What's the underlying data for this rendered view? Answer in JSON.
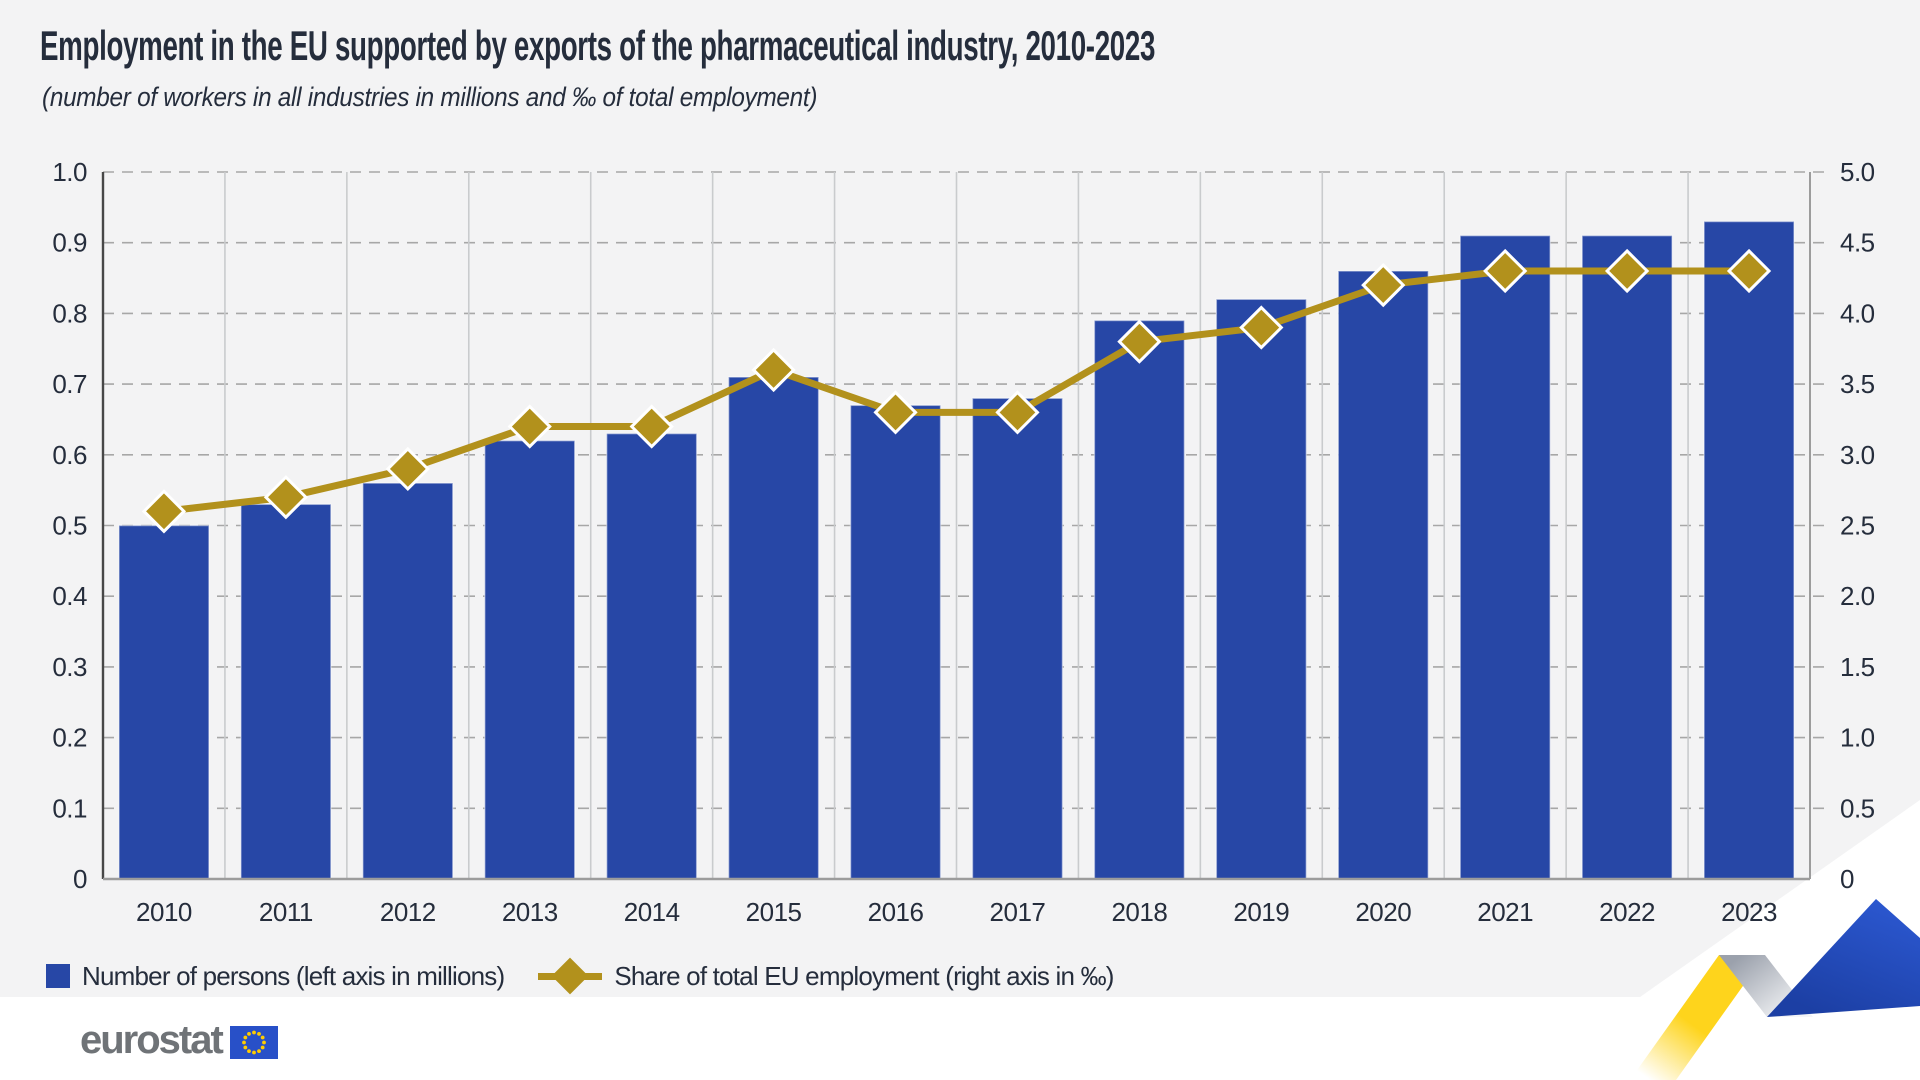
{
  "title": "Employment in the EU supported by exports of the pharmaceutical industry, 2010-2023",
  "subtitle": "(number of workers in all industries in millions and ‰ of total employment)",
  "legend": {
    "items": [
      {
        "marker": "blue-square",
        "label": "Number of persons (left axis in millions)"
      },
      {
        "marker": "gold-diamond-line",
        "label": "Share of total EU employment (right axis in ‰)"
      }
    ]
  },
  "footer": {
    "logo_text": "eurostat"
  },
  "colors": {
    "bar": "#2747A6",
    "line": "#B2911C",
    "panel_background": "#F3F3F4",
    "text": "#252D3C",
    "grid_dashed": "#A7A7A7",
    "grid_vertical": "#C9CBCD",
    "axis_left": "#474747",
    "axis_right_bottom": "#9C9C9C"
  },
  "chart_data": {
    "type": "bar",
    "title": "Employment in the EU supported by exports of the pharmaceutical industry, 2010-2023",
    "subtitle": "(number of workers in all industries in millions and ‰ of total employment)",
    "categories": [
      "2010",
      "2011",
      "2012",
      "2013",
      "2014",
      "2015",
      "2016",
      "2017",
      "2018",
      "2019",
      "2020",
      "2021",
      "2022",
      "2023"
    ],
    "series": [
      {
        "name": "Number of persons (left axis in millions)",
        "type": "bar",
        "axis": "left",
        "values": [
          0.5,
          0.53,
          0.56,
          0.62,
          0.63,
          0.71,
          0.67,
          0.68,
          0.79,
          0.82,
          0.86,
          0.91,
          0.91,
          0.93
        ]
      },
      {
        "name": "Share of total EU employment (right axis in ‰)",
        "type": "line",
        "axis": "right",
        "values": [
          2.6,
          2.7,
          2.9,
          3.2,
          3.2,
          3.6,
          3.3,
          3.3,
          3.8,
          3.9,
          4.2,
          4.3,
          4.3,
          4.3
        ]
      }
    ],
    "left_axis": {
      "min": 0,
      "max": 1.0,
      "tick_labels": [
        "1.0",
        "0.9",
        "0.8",
        "0.7",
        "0.6",
        "0.5",
        "0.4",
        "0.3",
        "0.2",
        "0.1",
        "0"
      ]
    },
    "right_axis": {
      "min": 0,
      "max": 5.0,
      "tick_labels": [
        "5.0",
        "4.5",
        "4.0",
        "3.5",
        "3.0",
        "2.5",
        "2.0",
        "1.5",
        "1.0",
        "0.5",
        "0"
      ]
    },
    "grid": {
      "horizontal": "dashed",
      "vertical": "solid category separators"
    },
    "legend_position": "bottom-left"
  }
}
